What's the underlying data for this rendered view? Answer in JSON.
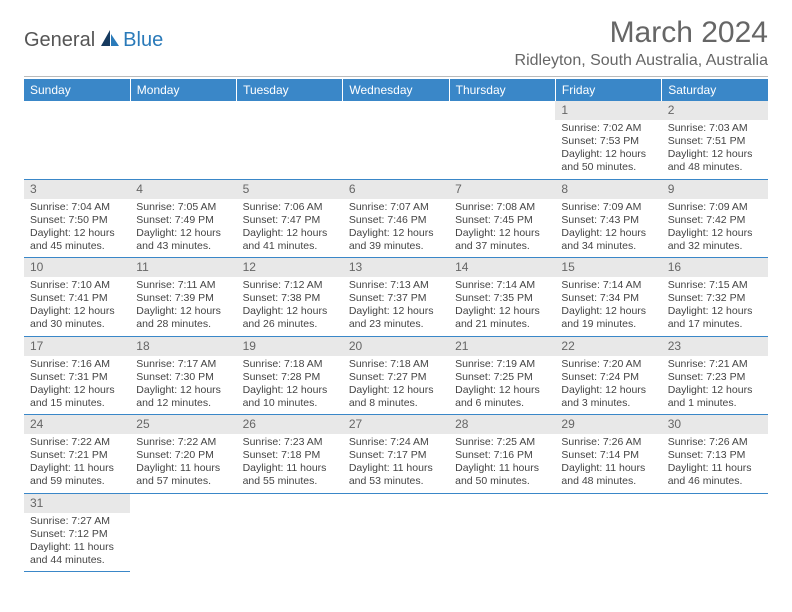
{
  "logo": {
    "general": "General",
    "blue": "Blue"
  },
  "title": "March 2024",
  "location": "Ridleyton, South Australia, Australia",
  "dow": [
    "Sunday",
    "Monday",
    "Tuesday",
    "Wednesday",
    "Thursday",
    "Friday",
    "Saturday"
  ],
  "colors": {
    "header_bg": "#3a87c8",
    "header_text": "#ffffff",
    "daynum_bg": "#e8e8e8",
    "daynum_text": "#666666",
    "border": "#3a87c8",
    "body_text": "#444444"
  },
  "labels": {
    "sunrise": "Sunrise:",
    "sunset": "Sunset:",
    "daylight": "Daylight:"
  },
  "first_dow_index": 5,
  "days": [
    {
      "n": 1,
      "sunrise": "7:02 AM",
      "sunset": "7:53 PM",
      "day_h": 12,
      "day_m": 50
    },
    {
      "n": 2,
      "sunrise": "7:03 AM",
      "sunset": "7:51 PM",
      "day_h": 12,
      "day_m": 48
    },
    {
      "n": 3,
      "sunrise": "7:04 AM",
      "sunset": "7:50 PM",
      "day_h": 12,
      "day_m": 45
    },
    {
      "n": 4,
      "sunrise": "7:05 AM",
      "sunset": "7:49 PM",
      "day_h": 12,
      "day_m": 43
    },
    {
      "n": 5,
      "sunrise": "7:06 AM",
      "sunset": "7:47 PM",
      "day_h": 12,
      "day_m": 41
    },
    {
      "n": 6,
      "sunrise": "7:07 AM",
      "sunset": "7:46 PM",
      "day_h": 12,
      "day_m": 39
    },
    {
      "n": 7,
      "sunrise": "7:08 AM",
      "sunset": "7:45 PM",
      "day_h": 12,
      "day_m": 37
    },
    {
      "n": 8,
      "sunrise": "7:09 AM",
      "sunset": "7:43 PM",
      "day_h": 12,
      "day_m": 34
    },
    {
      "n": 9,
      "sunrise": "7:09 AM",
      "sunset": "7:42 PM",
      "day_h": 12,
      "day_m": 32
    },
    {
      "n": 10,
      "sunrise": "7:10 AM",
      "sunset": "7:41 PM",
      "day_h": 12,
      "day_m": 30
    },
    {
      "n": 11,
      "sunrise": "7:11 AM",
      "sunset": "7:39 PM",
      "day_h": 12,
      "day_m": 28
    },
    {
      "n": 12,
      "sunrise": "7:12 AM",
      "sunset": "7:38 PM",
      "day_h": 12,
      "day_m": 26
    },
    {
      "n": 13,
      "sunrise": "7:13 AM",
      "sunset": "7:37 PM",
      "day_h": 12,
      "day_m": 23
    },
    {
      "n": 14,
      "sunrise": "7:14 AM",
      "sunset": "7:35 PM",
      "day_h": 12,
      "day_m": 21
    },
    {
      "n": 15,
      "sunrise": "7:14 AM",
      "sunset": "7:34 PM",
      "day_h": 12,
      "day_m": 19
    },
    {
      "n": 16,
      "sunrise": "7:15 AM",
      "sunset": "7:32 PM",
      "day_h": 12,
      "day_m": 17
    },
    {
      "n": 17,
      "sunrise": "7:16 AM",
      "sunset": "7:31 PM",
      "day_h": 12,
      "day_m": 15
    },
    {
      "n": 18,
      "sunrise": "7:17 AM",
      "sunset": "7:30 PM",
      "day_h": 12,
      "day_m": 12
    },
    {
      "n": 19,
      "sunrise": "7:18 AM",
      "sunset": "7:28 PM",
      "day_h": 12,
      "day_m": 10
    },
    {
      "n": 20,
      "sunrise": "7:18 AM",
      "sunset": "7:27 PM",
      "day_h": 12,
      "day_m": 8
    },
    {
      "n": 21,
      "sunrise": "7:19 AM",
      "sunset": "7:25 PM",
      "day_h": 12,
      "day_m": 6
    },
    {
      "n": 22,
      "sunrise": "7:20 AM",
      "sunset": "7:24 PM",
      "day_h": 12,
      "day_m": 3
    },
    {
      "n": 23,
      "sunrise": "7:21 AM",
      "sunset": "7:23 PM",
      "day_h": 12,
      "day_m": 1
    },
    {
      "n": 24,
      "sunrise": "7:22 AM",
      "sunset": "7:21 PM",
      "day_h": 11,
      "day_m": 59
    },
    {
      "n": 25,
      "sunrise": "7:22 AM",
      "sunset": "7:20 PM",
      "day_h": 11,
      "day_m": 57
    },
    {
      "n": 26,
      "sunrise": "7:23 AM",
      "sunset": "7:18 PM",
      "day_h": 11,
      "day_m": 55
    },
    {
      "n": 27,
      "sunrise": "7:24 AM",
      "sunset": "7:17 PM",
      "day_h": 11,
      "day_m": 53
    },
    {
      "n": 28,
      "sunrise": "7:25 AM",
      "sunset": "7:16 PM",
      "day_h": 11,
      "day_m": 50
    },
    {
      "n": 29,
      "sunrise": "7:26 AM",
      "sunset": "7:14 PM",
      "day_h": 11,
      "day_m": 48
    },
    {
      "n": 30,
      "sunrise": "7:26 AM",
      "sunset": "7:13 PM",
      "day_h": 11,
      "day_m": 46
    },
    {
      "n": 31,
      "sunrise": "7:27 AM",
      "sunset": "7:12 PM",
      "day_h": 11,
      "day_m": 44
    }
  ]
}
